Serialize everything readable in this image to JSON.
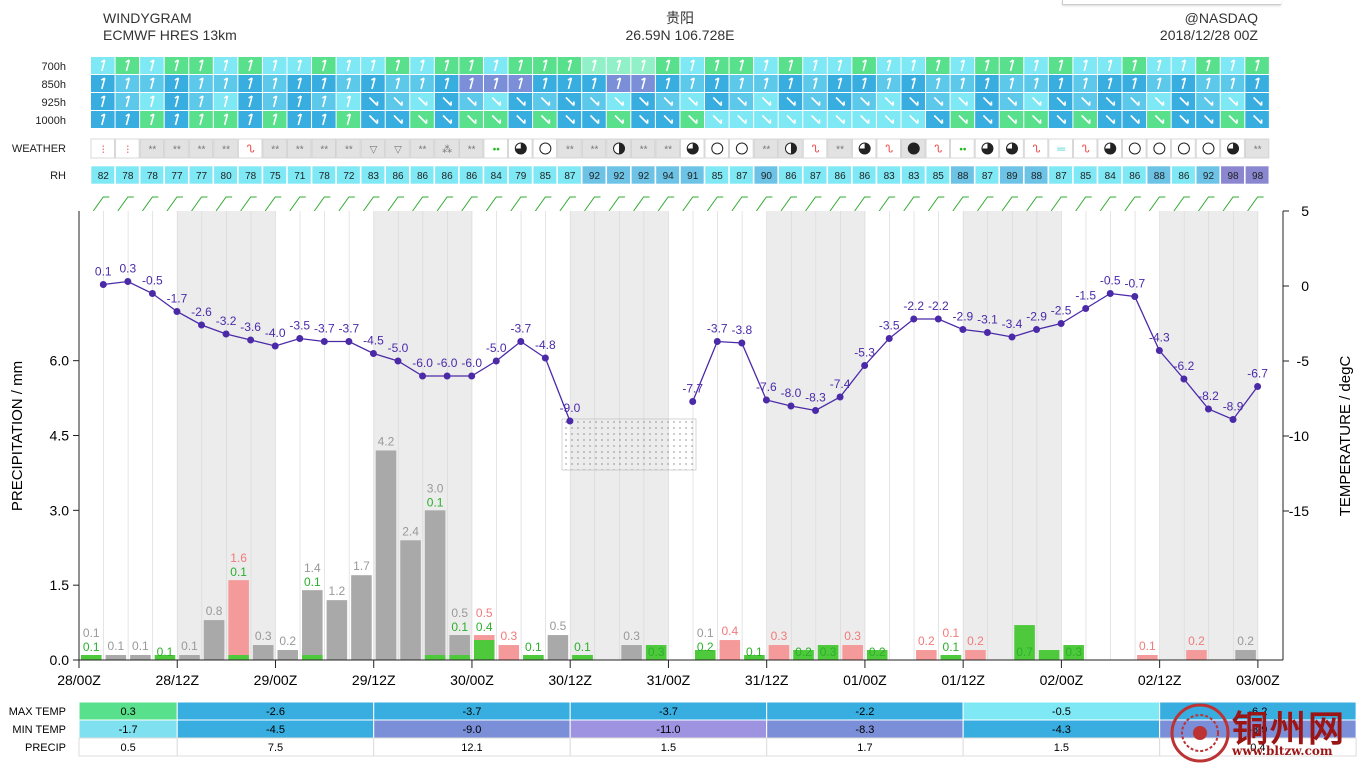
{
  "header": {
    "title": "WINDYGRAM",
    "model": "ECMWF HRES 13km",
    "location": "贵阳",
    "coords": "26.59N 106.728E",
    "credit": "@NASDAQ",
    "run": "2018/12/28 00Z"
  },
  "wind_rows": {
    "levels": [
      "700h",
      "850h",
      "925h",
      "1000h"
    ]
  },
  "weather_label": "WEATHER",
  "rh_label": "RH",
  "rh_values": [
    82,
    78,
    78,
    77,
    77,
    80,
    78,
    75,
    71,
    78,
    72,
    83,
    86,
    86,
    86,
    86,
    84,
    79,
    85,
    87,
    92,
    92,
    92,
    94,
    91,
    85,
    87,
    90,
    86,
    87,
    86,
    86,
    83,
    83,
    85,
    88,
    87,
    89,
    88,
    87,
    85,
    84,
    86,
    88,
    86,
    92,
    98,
    98
  ],
  "weather_symbols": [
    "snow",
    "snow",
    "**",
    "**",
    "**",
    "**",
    "fog",
    "**",
    "**",
    "**",
    "**",
    "shower",
    "shower",
    "**",
    "drizzle",
    "**",
    "rain",
    "q3",
    "o",
    "**",
    "**",
    "half",
    "**",
    "**",
    "q3",
    "o",
    "o",
    "**",
    "half",
    "fog",
    "**",
    "q3",
    "fog",
    "full",
    "fog",
    "rain",
    "q3",
    "q3",
    "fog",
    "haze",
    "fog",
    "q3",
    "o",
    "o",
    "o",
    "o",
    "q3",
    "**"
  ],
  "chart_data": {
    "type": "bar",
    "x_tick_labels": [
      "28/00Z",
      "28/12Z",
      "29/00Z",
      "29/12Z",
      "30/00Z",
      "30/12Z",
      "31/00Z",
      "31/12Z",
      "01/00Z",
      "01/12Z",
      "02/00Z",
      "02/12Z",
      "03/00Z"
    ],
    "ylabel_left": "PRECIPITATION / mm",
    "ylabel_right": "TEMPERATURE / degC",
    "ylim_left": [
      0,
      9.0
    ],
    "left_ticks": [
      "0.0",
      "1.5",
      "3.0",
      "4.5",
      "6.0"
    ],
    "ylim_right": [
      -25,
      5
    ],
    "right_ticks": [
      "5",
      "0",
      "-5",
      "-10",
      "-15"
    ],
    "grid": true,
    "precip": {
      "step_hours": 3,
      "total": [
        0.1,
        0.1,
        0.1,
        0,
        0.1,
        0.8,
        1.6,
        0.3,
        0.2,
        1.4,
        1.2,
        1.7,
        4.2,
        2.4,
        3.0,
        0.5,
        0.5,
        0.3,
        0.1,
        0.5,
        0.1,
        0,
        0.3,
        0,
        0,
        0.1,
        0.4,
        0,
        0.3,
        0,
        0,
        0.3,
        0,
        0,
        0.2,
        0.1,
        0.2,
        0,
        0,
        0,
        0,
        0,
        0,
        0.1,
        0,
        0.2,
        0,
        0.2
      ],
      "total_color": [
        "gray",
        "gray",
        "gray",
        "gray",
        "gray",
        "gray",
        "red",
        "gray",
        "gray",
        "gray",
        "gray",
        "gray",
        "gray",
        "gray",
        "gray",
        "gray",
        "red",
        "red",
        "gray",
        "gray",
        "gray",
        "gray",
        "gray",
        "gray",
        "gray",
        "gray",
        "red",
        "gray",
        "red",
        "gray",
        "gray",
        "red",
        "gray",
        "gray",
        "red",
        "red",
        "red",
        "gray",
        "gray",
        "gray",
        "gray",
        "gray",
        "gray",
        "red",
        "gray",
        "red",
        "gray",
        "gray"
      ],
      "total_label": [
        "0.1",
        "0.1",
        "0.1",
        "",
        "0.1",
        "0.8",
        "1.6",
        "0.3",
        "0.2",
        "1.4",
        "1.2",
        "1.7",
        "4.2",
        "2.4",
        "3.0",
        "0.5",
        "0.5",
        "0.3",
        "",
        "0.5",
        "",
        "",
        "0.3",
        "",
        "",
        "0.1",
        "0.4",
        "",
        "0.3",
        "",
        "",
        "0.3",
        "",
        "",
        "0.2",
        "0.1",
        "0.2",
        "",
        "",
        "",
        "",
        "",
        "",
        "0.1",
        "",
        "0.2",
        "",
        "0.2"
      ],
      "convective": [
        0.1,
        0,
        0,
        0.1,
        0,
        0,
        0.1,
        0,
        0,
        0.1,
        0,
        0,
        0,
        0,
        0.1,
        0.1,
        0.4,
        0,
        0.1,
        0,
        0.1,
        0,
        0,
        0.3,
        0,
        0.2,
        0,
        0.1,
        0,
        0.2,
        0.3,
        0,
        0.2,
        0,
        0,
        0.1,
        0,
        0,
        0.7,
        0.2,
        0.3,
        0,
        0,
        0,
        0,
        0,
        0,
        0
      ],
      "convective_label": [
        "0.1",
        "",
        "",
        "0.1",
        "",
        "",
        "0.1",
        "",
        "",
        "0.1",
        "",
        "",
        "",
        "",
        "0.1",
        "0.1",
        "0.4",
        "",
        "0.1",
        "",
        "0.1",
        "",
        "",
        "0.3",
        "",
        "0.2",
        "",
        "0.1",
        "",
        "0.2",
        "0.3",
        "",
        "0.2",
        "",
        "",
        "0.1",
        "",
        "",
        "0.7",
        "",
        "0.3",
        "",
        "",
        "",
        "",
        "",
        "",
        ""
      ]
    },
    "temperature": {
      "step_hours": 3,
      "values": [
        0.1,
        0.3,
        -0.5,
        -1.7,
        -2.6,
        -3.2,
        -3.6,
        -4.0,
        -3.5,
        -3.7,
        -3.7,
        -4.5,
        -5.0,
        -6.0,
        -6.0,
        -6.0,
        -5.0,
        -3.7,
        -4.8,
        -9.0,
        null,
        null,
        null,
        null,
        -7.7,
        -3.7,
        -3.8,
        -7.6,
        -8.0,
        -8.3,
        -7.4,
        -5.3,
        -3.5,
        -2.2,
        -2.2,
        -2.9,
        -3.1,
        -3.4,
        -2.9,
        -2.5,
        -1.5,
        -0.5,
        -0.7,
        -4.3,
        -6.2,
        -8.2,
        -8.9,
        -6.7
      ],
      "color": "#4b2aa8"
    }
  },
  "summary": {
    "row_labels": [
      "MAX TEMP",
      "MIN TEMP",
      "PRECIP"
    ],
    "columns": [
      {
        "max": "0.3",
        "min": "-1.7",
        "precip": "0.5",
        "max_color": "#58e08c",
        "min_color": "#7fe0f0"
      },
      {
        "max": "-2.6",
        "min": "-4.5",
        "precip": "7.5",
        "max_color": "#38aee0",
        "min_color": "#38aee0"
      },
      {
        "max": "-3.7",
        "min": "-9.0",
        "precip": "12.1",
        "max_color": "#38aee0",
        "min_color": "#7a8fd8"
      },
      {
        "max": "-3.7",
        "min": "-11.0",
        "precip": "1.5",
        "max_color": "#38aee0",
        "min_color": "#9d93e0"
      },
      {
        "max": "-2.2",
        "min": "-8.3",
        "precip": "1.7",
        "max_color": "#38aee0",
        "min_color": "#7a8fd8"
      },
      {
        "max": "-0.5",
        "min": "-4.3",
        "precip": "1.5",
        "max_color": "#7fe8f5",
        "min_color": "#38aee0"
      },
      {
        "max": "-6.2",
        "min": "-8.9",
        "precip": "0.4",
        "max_color": "#38aee0",
        "min_color": "#7a8fd8"
      }
    ]
  },
  "watermark": {
    "text": "铜州网",
    "url": "www.bltzw.com"
  }
}
